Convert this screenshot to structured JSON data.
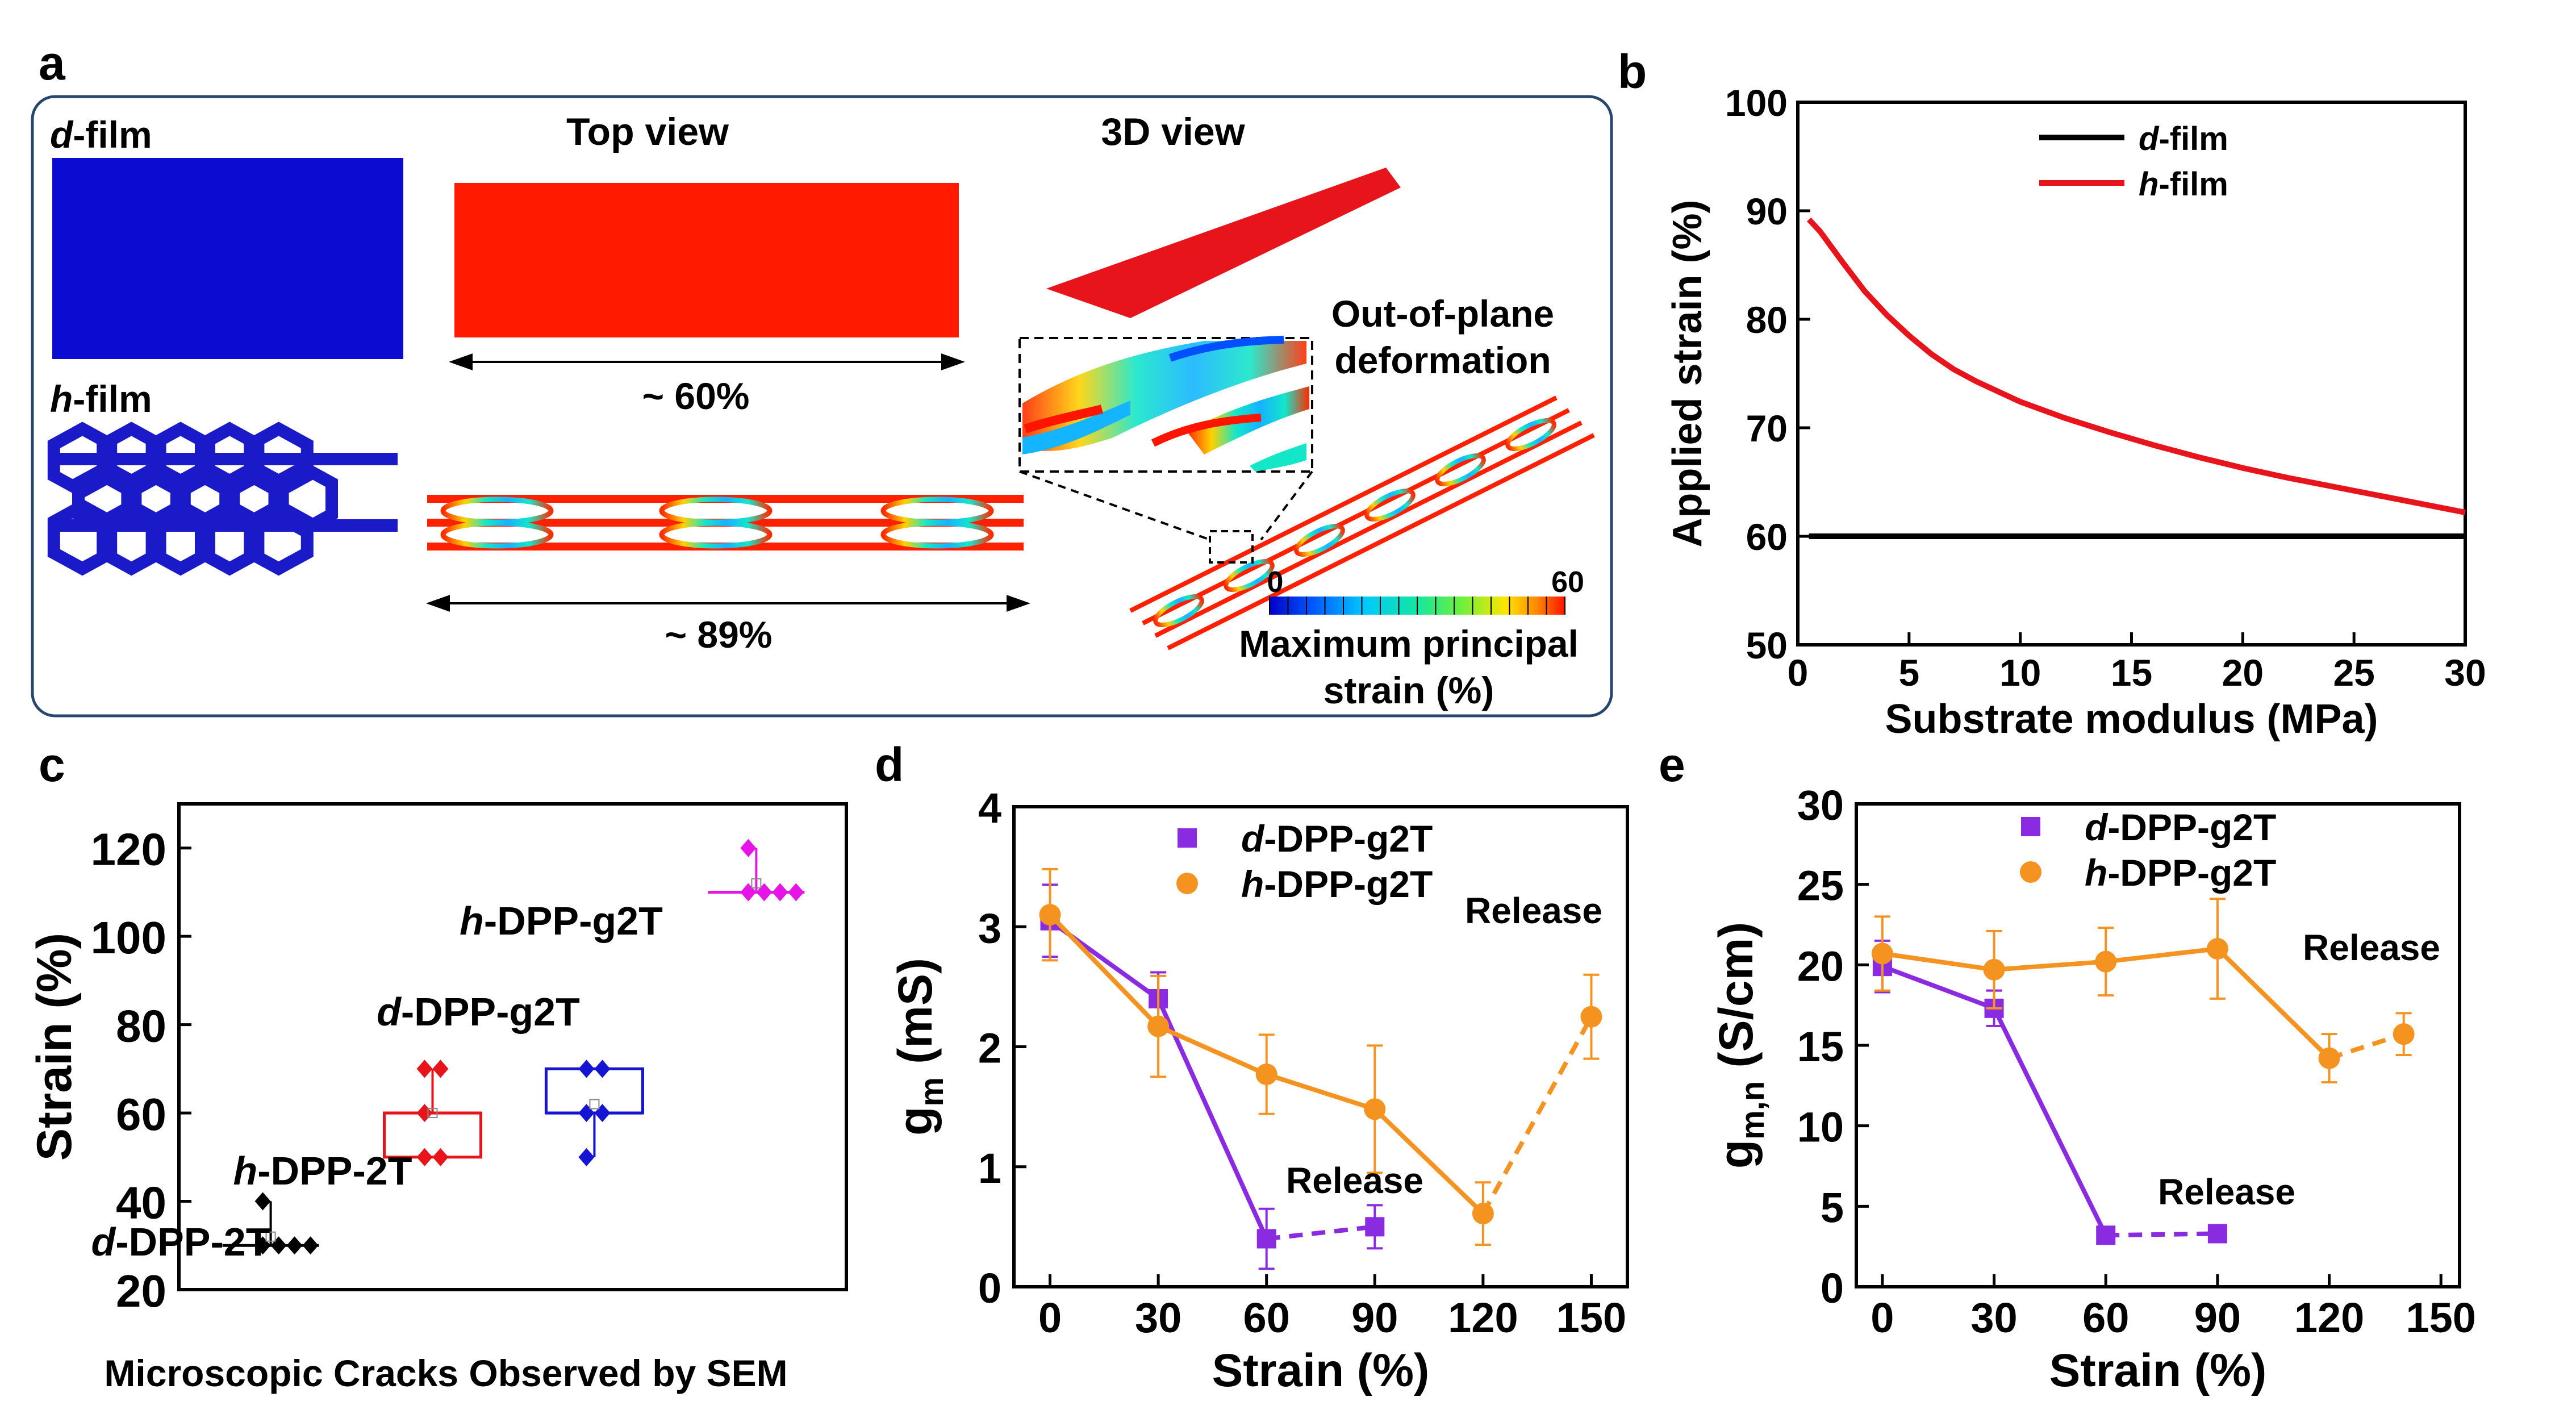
{
  "panel_labels": {
    "a": "a",
    "b": "b",
    "c": "c",
    "d": "d",
    "e": "e"
  },
  "panel_a": {
    "d_film_label": {
      "prefix": "d",
      "suffix": "-film"
    },
    "h_film_label": {
      "prefix": "h",
      "suffix": "-film"
    },
    "top_view_title": "Top view",
    "view3d_title": "3D view",
    "strain_60": "~ 60%",
    "strain_89": "~ 89%",
    "oop_line1": "Out-of-plane",
    "oop_line2": "deformation",
    "colorbar_min": "0",
    "colorbar_max": "60",
    "colorbar_title_line1": "Maximum principal",
    "colorbar_title_line2": "strain (%)",
    "colors": {
      "d_film": "#0b0bd2",
      "h_film": "#1a1ac8",
      "top_view": "#ff1a00",
      "frame": "#26456f"
    }
  },
  "chart_data": [
    {
      "id": "b",
      "type": "line",
      "xlabel": "Substrate modulus (MPa)",
      "ylabel": "Applied strain (%)",
      "xlim": [
        0,
        30
      ],
      "ylim": [
        50,
        100
      ],
      "xticks": [
        "0",
        "5",
        "10",
        "15",
        "20",
        "25",
        "30"
      ],
      "yticks": [
        "50",
        "60",
        "70",
        "80",
        "90",
        "100"
      ],
      "legend_position": "top-center",
      "series": [
        {
          "name": {
            "prefix": "d",
            "suffix": "-film"
          },
          "color": "#000000",
          "x": [
            0.5,
            30
          ],
          "y": [
            60,
            60
          ]
        },
        {
          "name": {
            "prefix": "h",
            "suffix": "-film"
          },
          "color": "#e8141c",
          "x": [
            0.5,
            1,
            2,
            3,
            4,
            5,
            6,
            7,
            8,
            10,
            12,
            14,
            16,
            18,
            20,
            22,
            24,
            26,
            28,
            30
          ],
          "y": [
            89.2,
            88.1,
            85.3,
            82.6,
            80.4,
            78.5,
            76.8,
            75.4,
            74.3,
            72.4,
            70.9,
            69.6,
            68.4,
            67.3,
            66.3,
            65.4,
            64.6,
            63.8,
            63.0,
            62.2
          ]
        }
      ]
    },
    {
      "id": "c",
      "type": "box",
      "ylabel": "Strain (%)",
      "xlabel": "Microscopic Cracks Observed by SEM",
      "ylim": [
        20,
        130
      ],
      "yticks": [
        "20",
        "40",
        "60",
        "80",
        "100",
        "120"
      ],
      "groups": [
        {
          "label": {
            "prefix": "d",
            "suffix": "-DPP-2T"
          },
          "color": "#000000",
          "q1": 30,
          "q3": 30,
          "median": 30,
          "points": [
            30,
            30,
            30,
            30,
            40
          ],
          "mean": 32
        },
        {
          "label": {
            "prefix": "h",
            "suffix": "-DPP-2T"
          },
          "color": "#e8141c",
          "q1": 50,
          "q3": 60,
          "median": 60,
          "points": [
            50,
            50,
            60,
            70,
            70
          ],
          "mean": 60
        },
        {
          "label": {
            "prefix": "d",
            "suffix": "-DPP-g2T"
          },
          "color": "#1414d2",
          "q1": 60,
          "q3": 70,
          "median": 60,
          "points": [
            50,
            60,
            60,
            70,
            70
          ],
          "mean": 62
        },
        {
          "label": {
            "prefix": "h",
            "suffix": "-DPP-g2T"
          },
          "color": "#e614e6",
          "q1": 110,
          "q3": 110,
          "median": 110,
          "points": [
            110,
            110,
            110,
            110,
            120
          ],
          "mean": 112
        }
      ]
    },
    {
      "id": "d",
      "type": "line",
      "xlabel": "Strain (%)",
      "ylabel": {
        "base": "g",
        "sub": "m",
        "unit": " (mS)"
      },
      "xlim": [
        -10,
        160
      ],
      "ylim": [
        0,
        4
      ],
      "xticks": [
        0,
        30,
        60,
        90,
        120,
        150
      ],
      "yticks": [
        0,
        1,
        2,
        3,
        4
      ],
      "annotations": [
        "Release",
        "Release"
      ],
      "series": [
        {
          "name": {
            "prefix": "d",
            "suffix": "-DPP-g2T"
          },
          "color": "#8a2be2",
          "marker": "square",
          "x": [
            0,
            30,
            60
          ],
          "y": [
            3.05,
            2.4,
            0.4
          ],
          "err": [
            0.3,
            0.22,
            0.25
          ],
          "release_x": [
            60,
            90
          ],
          "release_y": [
            0.4,
            0.5
          ],
          "release_err": [
            0.25,
            0.18
          ]
        },
        {
          "name": {
            "prefix": "h",
            "suffix": "-DPP-g2T"
          },
          "color": "#f59321",
          "marker": "circle",
          "x": [
            0,
            30,
            60,
            90,
            120
          ],
          "y": [
            3.1,
            2.17,
            1.77,
            1.48,
            0.61
          ],
          "err": [
            0.38,
            0.42,
            0.33,
            0.53,
            0.26
          ],
          "release_x": [
            120,
            150
          ],
          "release_y": [
            0.61,
            2.25
          ],
          "release_err": [
            0.26,
            0.35
          ]
        }
      ]
    },
    {
      "id": "e",
      "type": "line",
      "xlabel": "Strain (%)",
      "ylabel": {
        "base": "g",
        "sub": "m,n",
        "unit": " (S/cm)"
      },
      "xlim": [
        -7,
        155
      ],
      "ylim": [
        0,
        30
      ],
      "xticks": [
        0,
        30,
        60,
        90,
        120,
        150
      ],
      "yticks": [
        0,
        5,
        10,
        15,
        20,
        25,
        30
      ],
      "annotations": [
        "Release",
        "Release"
      ],
      "series": [
        {
          "name": {
            "prefix": "d",
            "suffix": "-DPP-g2T"
          },
          "color": "#8a2be2",
          "marker": "square",
          "x": [
            0,
            30,
            60
          ],
          "y": [
            19.9,
            17.3,
            3.2
          ],
          "err": [
            1.6,
            1.1,
            0.4
          ],
          "release_x": [
            60,
            90
          ],
          "release_y": [
            3.2,
            3.3
          ],
          "release_err": [
            0.4,
            0.5
          ]
        },
        {
          "name": {
            "prefix": "h",
            "suffix": "-DPP-g2T"
          },
          "color": "#f59321",
          "marker": "circle",
          "x": [
            0,
            30,
            60,
            90,
            120
          ],
          "y": [
            20.7,
            19.7,
            20.2,
            21.0,
            14.2
          ],
          "err": [
            2.3,
            2.4,
            2.1,
            3.1,
            1.5
          ],
          "release_x": [
            120,
            140
          ],
          "release_y": [
            14.2,
            15.7
          ],
          "release_err": [
            1.5,
            1.3
          ]
        }
      ]
    }
  ]
}
